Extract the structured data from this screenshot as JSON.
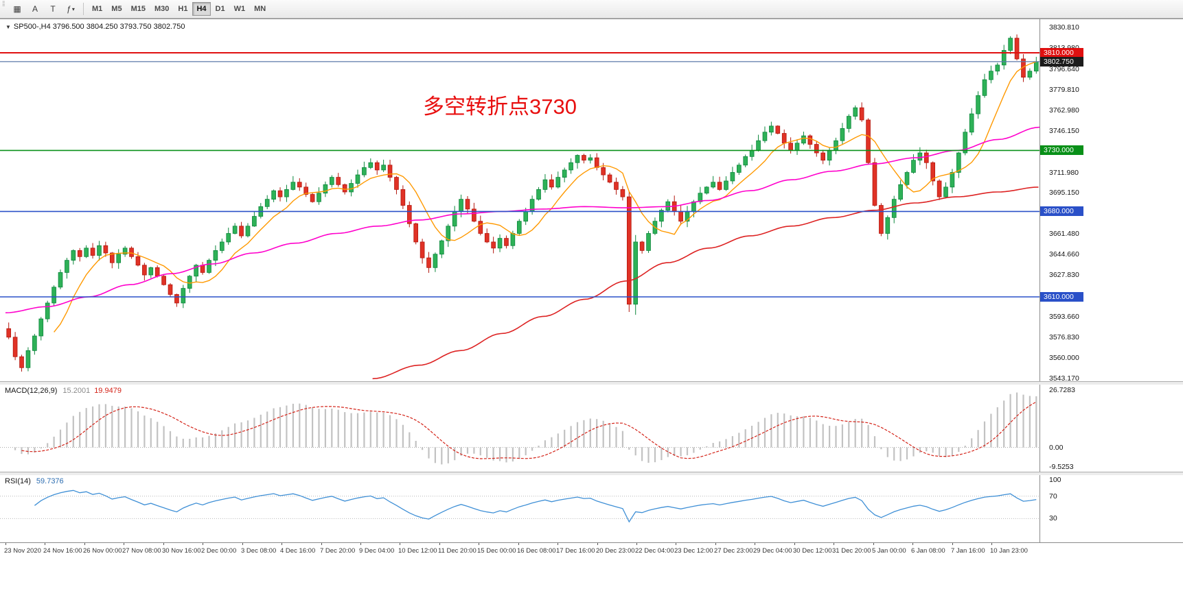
{
  "toolbar": {
    "icons": [
      {
        "name": "chart-window-icon",
        "glyph": "▦"
      },
      {
        "name": "cursor-tool-icon",
        "glyph": "A"
      },
      {
        "name": "text-tool-icon",
        "glyph": "T"
      },
      {
        "name": "indicators-dropdown-icon",
        "glyph": "ƒ",
        "caret": "▾"
      }
    ],
    "timeframes": [
      {
        "label": "M1",
        "active": false
      },
      {
        "label": "M5",
        "active": false
      },
      {
        "label": "M15",
        "active": false
      },
      {
        "label": "M30",
        "active": false
      },
      {
        "label": "H1",
        "active": false
      },
      {
        "label": "H4",
        "active": true
      },
      {
        "label": "D1",
        "active": false
      },
      {
        "label": "W1",
        "active": false
      },
      {
        "label": "MN",
        "active": false
      }
    ]
  },
  "chart_data": {
    "type": "candlestick",
    "symbol": "SP500-",
    "timeframe": "H4",
    "header_marker": "▼",
    "header": "SP500-,H4  3796.500 3804.250 3793.750 3802.750",
    "ohlc_header": {
      "open": "3796.500",
      "high": "3804.250",
      "low": "3793.750",
      "close": "3802.750"
    },
    "annotation": {
      "text": "多空转折点3730",
      "color": "#e80f0f"
    },
    "y_range": [
      3543.17,
      3830.81
    ],
    "closes": [
      3577,
      3561,
      3552,
      3566,
      3578,
      3592,
      3605,
      3618,
      3630,
      3640,
      3648,
      3643,
      3650,
      3644,
      3652,
      3646,
      3638,
      3645,
      3650,
      3643,
      3636,
      3628,
      3634,
      3627,
      3620,
      3612,
      3605,
      3617,
      3627,
      3636,
      3630,
      3640,
      3648,
      3655,
      3662,
      3668,
      3660,
      3668,
      3676,
      3684,
      3690,
      3697,
      3692,
      3698,
      3704,
      3700,
      3694,
      3688,
      3695,
      3702,
      3708,
      3702,
      3696,
      3703,
      3710,
      3716,
      3720,
      3714,
      3718,
      3708,
      3698,
      3685,
      3670,
      3655,
      3642,
      3634,
      3645,
      3656,
      3668,
      3680,
      3690,
      3682,
      3672,
      3662,
      3655,
      3650,
      3658,
      3652,
      3662,
      3672,
      3680,
      3690,
      3698,
      3706,
      3700,
      3708,
      3714,
      3720,
      3726,
      3722,
      3724,
      3716,
      3710,
      3704,
      3698,
      3692,
      3604,
      3655,
      3648,
      3662,
      3672,
      3681,
      3688,
      3680,
      3672,
      3680,
      3688,
      3695,
      3700,
      3704,
      3698,
      3705,
      3712,
      3718,
      3725,
      3730,
      3738,
      3745,
      3750,
      3744,
      3736,
      3730,
      3736,
      3742,
      3735,
      3728,
      3722,
      3730,
      3738,
      3748,
      3758,
      3765,
      3755,
      3720,
      3685,
      3662,
      3675,
      3690,
      3702,
      3712,
      3722,
      3728,
      3720,
      3705,
      3692,
      3700,
      3712,
      3728,
      3745,
      3760,
      3775,
      3788,
      3795,
      3800,
      3812,
      3822,
      3805,
      3790,
      3795,
      3802.75
    ],
    "price_axis_labels": [
      "3830.810",
      "3813.980",
      "3796.640",
      "3779.810",
      "3762.980",
      "3746.150",
      "3729.320",
      "3711.980",
      "3695.150",
      "3678.320",
      "3661.480",
      "3644.660",
      "3627.830",
      "3610.490",
      "3593.660",
      "3576.830",
      "3560.000",
      "3543.170"
    ],
    "levels": [
      {
        "price": 3810.0,
        "label": "3810.000",
        "line_color": "#e01010",
        "badge_color": "#e01010",
        "width": 2
      },
      {
        "price": 3802.75,
        "label": "3802.750",
        "line_color": "#5b79a8",
        "badge_color": "#1c1c1c",
        "width": 1.2
      },
      {
        "price": 3730.0,
        "label": "3730.000",
        "line_color": "#089018",
        "badge_color": "#089018",
        "width": 1.6
      },
      {
        "price": 3680.0,
        "label": "3680.000",
        "line_color": "#2a50c8",
        "badge_color": "#2a50c8",
        "width": 1.6
      },
      {
        "price": 3610.0,
        "label": "3610.000",
        "line_color": "#2a50c8",
        "badge_color": "#2a50c8",
        "width": 1.6
      }
    ],
    "moving_averages": {
      "fast": {
        "period": 8,
        "color": "#ff9900"
      },
      "mid": {
        "color": "#ff00cc",
        "anchors": [
          [
            0.0,
            3597
          ],
          [
            0.04,
            3602
          ],
          [
            0.08,
            3610
          ],
          [
            0.12,
            3620
          ],
          [
            0.16,
            3629
          ],
          [
            0.2,
            3637
          ],
          [
            0.24,
            3646
          ],
          [
            0.28,
            3654
          ],
          [
            0.32,
            3662
          ],
          [
            0.36,
            3668
          ],
          [
            0.4,
            3673
          ],
          [
            0.44,
            3678
          ],
          [
            0.48,
            3680
          ],
          [
            0.52,
            3682
          ],
          [
            0.56,
            3684
          ],
          [
            0.6,
            3683
          ],
          [
            0.64,
            3684
          ],
          [
            0.68,
            3689
          ],
          [
            0.72,
            3697
          ],
          [
            0.76,
            3706
          ],
          [
            0.8,
            3713
          ],
          [
            0.84,
            3719
          ],
          [
            0.88,
            3724
          ],
          [
            0.92,
            3730
          ],
          [
            0.96,
            3739
          ],
          [
            1.0,
            3749
          ]
        ]
      },
      "slow": {
        "color": "#dd2222",
        "anchors": [
          [
            0.355,
            3543
          ],
          [
            0.4,
            3554
          ],
          [
            0.44,
            3566
          ],
          [
            0.48,
            3580
          ],
          [
            0.52,
            3594
          ],
          [
            0.56,
            3608
          ],
          [
            0.6,
            3623
          ],
          [
            0.64,
            3638
          ],
          [
            0.68,
            3650
          ],
          [
            0.72,
            3660
          ],
          [
            0.76,
            3668
          ],
          [
            0.8,
            3675
          ],
          [
            0.84,
            3681
          ],
          [
            0.88,
            3687
          ],
          [
            0.92,
            3692
          ],
          [
            0.96,
            3696
          ],
          [
            1.0,
            3700
          ]
        ]
      }
    },
    "indicators": {
      "macd": {
        "label": "MACD(12,26,9)",
        "values": [
          "15.2001",
          "19.9479"
        ],
        "fast": 12,
        "slow": 26,
        "signal": 9,
        "scale_labels": [
          "26.7283",
          "0.00",
          "-9.5253"
        ],
        "bar_color": "#c2c2c2",
        "signal_color": "#d42318"
      },
      "rsi": {
        "label": "RSI(14)",
        "value": "59.7376",
        "period": 14,
        "scale_labels": [
          "100",
          "70",
          "30"
        ],
        "levels": [
          70,
          30
        ],
        "line_color": "#3e8fd6",
        "level_color": "#b8b8b8"
      }
    },
    "x_labels": [
      "23 Nov 2020",
      "24 Nov 16:00",
      "26 Nov 00:00",
      "27 Nov 08:00",
      "30 Nov 16:00",
      "2 Dec 00:00",
      "3 Dec 08:00",
      "4 Dec 16:00",
      "7 Dec 20:00",
      "9 Dec 04:00",
      "10 Dec 12:00",
      "11 Dec 20:00",
      "15 Dec 00:00",
      "16 Dec 08:00",
      "17 Dec 16:00",
      "20 Dec 23:00",
      "22 Dec 04:00",
      "23 Dec 12:00",
      "27 Dec 23:00",
      "29 Dec 04:00",
      "30 Dec 12:00",
      "31 Dec 20:00",
      "5 Jan 00:00",
      "6 Jan 08:00",
      "7 Jan 16:00",
      "10 Jan 23:00"
    ],
    "candle_up_color": "#2eb157",
    "candle_down_color": "#e03226"
  }
}
